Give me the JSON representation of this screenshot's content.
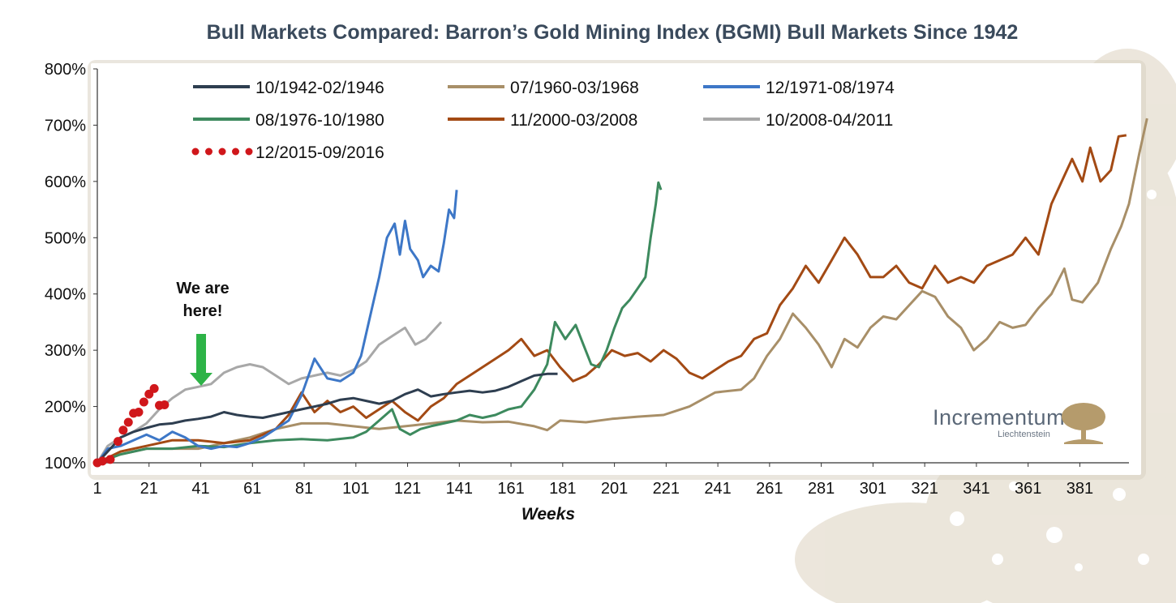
{
  "chart_data": {
    "type": "line",
    "title": "Bull Markets Compared: Barron’s Gold Mining Index (BGMI) Bull Markets Since 1942",
    "xlabel": "Weeks",
    "ylabel": "",
    "xlim": [
      1,
      400
    ],
    "ylim": [
      100,
      800
    ],
    "x_ticks": [
      1,
      21,
      41,
      61,
      81,
      101,
      121,
      141,
      161,
      181,
      201,
      221,
      241,
      261,
      281,
      301,
      321,
      341,
      361,
      381
    ],
    "y_ticks": [
      100,
      200,
      300,
      400,
      500,
      600,
      700,
      800
    ],
    "y_tick_labels": [
      "100%",
      "200%",
      "300%",
      "400%",
      "500%",
      "600%",
      "700%",
      "800%"
    ],
    "legend_position": "top",
    "series": [
      {
        "name": "10/1942-02/1946",
        "color": "#2e3e50",
        "style": "solid",
        "points": [
          [
            1,
            100
          ],
          [
            5,
            120
          ],
          [
            10,
            145
          ],
          [
            15,
            155
          ],
          [
            20,
            162
          ],
          [
            25,
            168
          ],
          [
            30,
            170
          ],
          [
            35,
            175
          ],
          [
            40,
            178
          ],
          [
            45,
            182
          ],
          [
            50,
            190
          ],
          [
            55,
            185
          ],
          [
            60,
            182
          ],
          [
            65,
            180
          ],
          [
            70,
            185
          ],
          [
            75,
            190
          ],
          [
            80,
            195
          ],
          [
            85,
            200
          ],
          [
            90,
            205
          ],
          [
            95,
            212
          ],
          [
            100,
            215
          ],
          [
            105,
            210
          ],
          [
            110,
            205
          ],
          [
            115,
            210
          ],
          [
            120,
            222
          ],
          [
            125,
            230
          ],
          [
            130,
            218
          ],
          [
            135,
            222
          ],
          [
            140,
            225
          ],
          [
            145,
            228
          ],
          [
            150,
            225
          ],
          [
            155,
            228
          ],
          [
            160,
            235
          ],
          [
            165,
            245
          ],
          [
            170,
            255
          ],
          [
            175,
            258
          ],
          [
            179,
            258
          ]
        ]
      },
      {
        "name": "07/1960-03/1968",
        "color": "#a88f68",
        "style": "solid",
        "points": [
          [
            1,
            100
          ],
          [
            10,
            115
          ],
          [
            20,
            125
          ],
          [
            30,
            125
          ],
          [
            40,
            125
          ],
          [
            50,
            135
          ],
          [
            60,
            145
          ],
          [
            70,
            160
          ],
          [
            80,
            170
          ],
          [
            90,
            170
          ],
          [
            100,
            165
          ],
          [
            110,
            160
          ],
          [
            120,
            165
          ],
          [
            130,
            170
          ],
          [
            140,
            175
          ],
          [
            150,
            172
          ],
          [
            160,
            173
          ],
          [
            170,
            165
          ],
          [
            175,
            158
          ],
          [
            180,
            175
          ],
          [
            190,
            172
          ],
          [
            200,
            178
          ],
          [
            210,
            182
          ],
          [
            220,
            185
          ],
          [
            230,
            200
          ],
          [
            240,
            225
          ],
          [
            250,
            230
          ],
          [
            255,
            250
          ],
          [
            260,
            290
          ],
          [
            265,
            320
          ],
          [
            270,
            365
          ],
          [
            275,
            340
          ],
          [
            280,
            310
          ],
          [
            285,
            270
          ],
          [
            290,
            320
          ],
          [
            295,
            305
          ],
          [
            300,
            340
          ],
          [
            305,
            360
          ],
          [
            310,
            355
          ],
          [
            315,
            380
          ],
          [
            320,
            405
          ],
          [
            325,
            395
          ],
          [
            330,
            360
          ],
          [
            335,
            340
          ],
          [
            340,
            300
          ],
          [
            345,
            320
          ],
          [
            350,
            350
          ],
          [
            355,
            340
          ],
          [
            360,
            345
          ],
          [
            365,
            375
          ],
          [
            370,
            400
          ],
          [
            375,
            445
          ],
          [
            378,
            390
          ],
          [
            382,
            385
          ],
          [
            388,
            420
          ],
          [
            393,
            480
          ],
          [
            397,
            520
          ],
          [
            400,
            560
          ],
          [
            404,
            650
          ],
          [
            407,
            712
          ]
        ]
      },
      {
        "name": "12/1971-08/1974",
        "color": "#3d77c7",
        "style": "solid",
        "points": [
          [
            1,
            100
          ],
          [
            5,
            125
          ],
          [
            10,
            130
          ],
          [
            15,
            140
          ],
          [
            20,
            150
          ],
          [
            25,
            140
          ],
          [
            30,
            155
          ],
          [
            35,
            145
          ],
          [
            40,
            130
          ],
          [
            45,
            125
          ],
          [
            50,
            130
          ],
          [
            55,
            128
          ],
          [
            60,
            135
          ],
          [
            65,
            145
          ],
          [
            70,
            160
          ],
          [
            75,
            175
          ],
          [
            80,
            220
          ],
          [
            85,
            285
          ],
          [
            90,
            250
          ],
          [
            95,
            245
          ],
          [
            100,
            260
          ],
          [
            103,
            290
          ],
          [
            107,
            370
          ],
          [
            110,
            430
          ],
          [
            113,
            500
          ],
          [
            116,
            525
          ],
          [
            118,
            470
          ],
          [
            120,
            530
          ],
          [
            122,
            480
          ],
          [
            125,
            460
          ],
          [
            127,
            430
          ],
          [
            130,
            450
          ],
          [
            133,
            440
          ],
          [
            135,
            490
          ],
          [
            137,
            550
          ],
          [
            139,
            535
          ],
          [
            140,
            585
          ]
        ]
      },
      {
        "name": "08/1976-10/1980",
        "color": "#3d8a5e",
        "style": "solid",
        "points": [
          [
            1,
            100
          ],
          [
            10,
            115
          ],
          [
            20,
            125
          ],
          [
            30,
            125
          ],
          [
            40,
            130
          ],
          [
            50,
            128
          ],
          [
            60,
            135
          ],
          [
            70,
            140
          ],
          [
            80,
            142
          ],
          [
            90,
            140
          ],
          [
            100,
            145
          ],
          [
            105,
            155
          ],
          [
            110,
            175
          ],
          [
            115,
            195
          ],
          [
            118,
            160
          ],
          [
            122,
            150
          ],
          [
            126,
            160
          ],
          [
            130,
            165
          ],
          [
            135,
            170
          ],
          [
            140,
            175
          ],
          [
            145,
            185
          ],
          [
            150,
            180
          ],
          [
            155,
            185
          ],
          [
            160,
            195
          ],
          [
            165,
            200
          ],
          [
            170,
            230
          ],
          [
            175,
            275
          ],
          [
            178,
            350
          ],
          [
            182,
            320
          ],
          [
            186,
            345
          ],
          [
            189,
            310
          ],
          [
            192,
            275
          ],
          [
            195,
            270
          ],
          [
            198,
            300
          ],
          [
            201,
            340
          ],
          [
            204,
            375
          ],
          [
            207,
            390
          ],
          [
            210,
            410
          ],
          [
            213,
            430
          ],
          [
            215,
            500
          ],
          [
            217,
            560
          ],
          [
            218,
            598
          ],
          [
            219,
            585
          ]
        ]
      },
      {
        "name": "11/2000-03/2008",
        "color": "#a34a14",
        "style": "solid",
        "points": [
          [
            1,
            100
          ],
          [
            10,
            120
          ],
          [
            20,
            130
          ],
          [
            30,
            140
          ],
          [
            40,
            140
          ],
          [
            50,
            135
          ],
          [
            60,
            140
          ],
          [
            70,
            160
          ],
          [
            75,
            185
          ],
          [
            80,
            225
          ],
          [
            85,
            190
          ],
          [
            90,
            210
          ],
          [
            95,
            190
          ],
          [
            100,
            200
          ],
          [
            105,
            180
          ],
          [
            110,
            195
          ],
          [
            115,
            210
          ],
          [
            120,
            190
          ],
          [
            125,
            175
          ],
          [
            130,
            200
          ],
          [
            135,
            215
          ],
          [
            140,
            240
          ],
          [
            145,
            255
          ],
          [
            150,
            270
          ],
          [
            155,
            285
          ],
          [
            160,
            300
          ],
          [
            165,
            320
          ],
          [
            170,
            290
          ],
          [
            175,
            300
          ],
          [
            180,
            270
          ],
          [
            185,
            245
          ],
          [
            190,
            255
          ],
          [
            195,
            275
          ],
          [
            200,
            300
          ],
          [
            205,
            290
          ],
          [
            210,
            295
          ],
          [
            215,
            280
          ],
          [
            220,
            300
          ],
          [
            225,
            285
          ],
          [
            230,
            260
          ],
          [
            235,
            250
          ],
          [
            240,
            265
          ],
          [
            245,
            280
          ],
          [
            250,
            290
          ],
          [
            255,
            320
          ],
          [
            260,
            330
          ],
          [
            265,
            380
          ],
          [
            270,
            410
          ],
          [
            275,
            450
          ],
          [
            280,
            420
          ],
          [
            285,
            460
          ],
          [
            290,
            500
          ],
          [
            295,
            470
          ],
          [
            300,
            430
          ],
          [
            305,
            430
          ],
          [
            310,
            450
          ],
          [
            315,
            420
          ],
          [
            320,
            410
          ],
          [
            325,
            450
          ],
          [
            330,
            420
          ],
          [
            335,
            430
          ],
          [
            340,
            420
          ],
          [
            345,
            450
          ],
          [
            350,
            460
          ],
          [
            355,
            470
          ],
          [
            360,
            500
          ],
          [
            365,
            470
          ],
          [
            370,
            560
          ],
          [
            375,
            610
          ],
          [
            378,
            640
          ],
          [
            382,
            600
          ],
          [
            385,
            660
          ],
          [
            389,
            600
          ],
          [
            393,
            620
          ],
          [
            396,
            680
          ],
          [
            399,
            682
          ]
        ]
      },
      {
        "name": "10/2008-04/2011",
        "color": "#a8a8a8",
        "style": "solid",
        "points": [
          [
            1,
            100
          ],
          [
            5,
            130
          ],
          [
            10,
            145
          ],
          [
            15,
            155
          ],
          [
            20,
            170
          ],
          [
            25,
            195
          ],
          [
            30,
            215
          ],
          [
            35,
            230
          ],
          [
            40,
            235
          ],
          [
            45,
            240
          ],
          [
            50,
            260
          ],
          [
            55,
            270
          ],
          [
            60,
            275
          ],
          [
            65,
            270
          ],
          [
            70,
            255
          ],
          [
            75,
            240
          ],
          [
            80,
            250
          ],
          [
            85,
            255
          ],
          [
            90,
            260
          ],
          [
            95,
            255
          ],
          [
            100,
            265
          ],
          [
            105,
            280
          ],
          [
            110,
            310
          ],
          [
            115,
            325
          ],
          [
            120,
            340
          ],
          [
            124,
            310
          ],
          [
            128,
            320
          ],
          [
            132,
            340
          ],
          [
            134,
            350
          ]
        ]
      },
      {
        "name": "12/2015-09/2016",
        "color": "#d0171b",
        "style": "dots",
        "points": [
          [
            1,
            100
          ],
          [
            3,
            103
          ],
          [
            6,
            106
          ],
          [
            9,
            138
          ],
          [
            11,
            158
          ],
          [
            13,
            172
          ],
          [
            15,
            188
          ],
          [
            17,
            190
          ],
          [
            19,
            208
          ],
          [
            21,
            222
          ],
          [
            23,
            232
          ],
          [
            25,
            202
          ],
          [
            27,
            203
          ]
        ]
      }
    ],
    "annotations": [
      {
        "text": "We are here!",
        "x": 41,
        "y": 215,
        "arrow": true,
        "color": "#2db347"
      }
    ],
    "legend_rows": [
      [
        "10/1942-02/1946",
        "07/1960-03/1968",
        "12/1971-08/1974"
      ],
      [
        "08/1976-10/1980",
        "11/2000-03/2008",
        "10/2008-04/2011"
      ],
      [
        "12/2015-09/2016"
      ]
    ]
  },
  "annotation_text": {
    "line1": "We are",
    "line2": "here!"
  },
  "branding": {
    "name": "Incrementum",
    "sub": "Liechtenstein"
  },
  "colors": {
    "panel": "#ffffff",
    "shadow": "#cfcabb",
    "axis": "#333333",
    "tree": "#b59b6c"
  }
}
